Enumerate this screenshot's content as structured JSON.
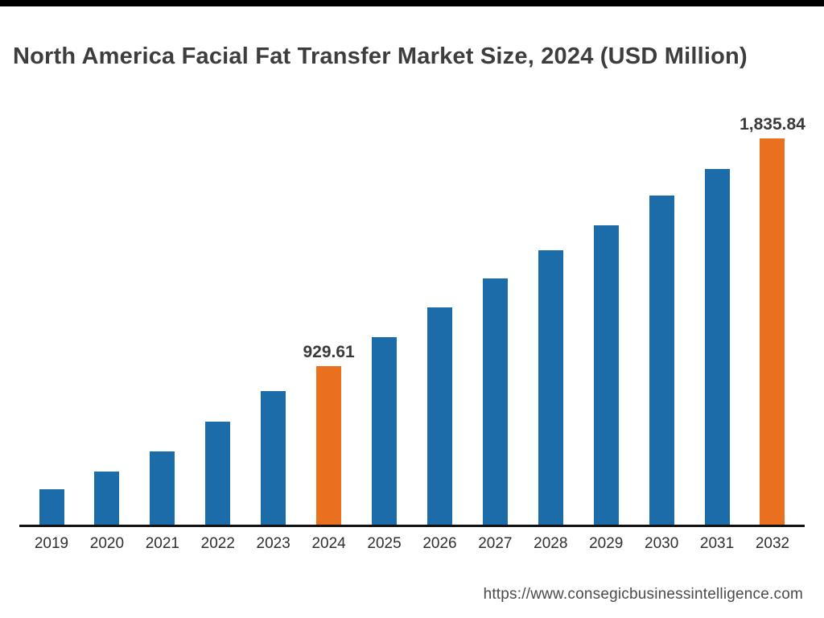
{
  "chart_data": {
    "type": "bar",
    "title": "North America Facial Fat Transfer Market Size, 2024 (USD Million)",
    "categories": [
      "2019",
      "2020",
      "2021",
      "2022",
      "2023",
      "2024",
      "2025",
      "2026",
      "2027",
      "2028",
      "2029",
      "2030",
      "2031",
      "2032"
    ],
    "values": [
      440,
      510,
      590,
      710,
      830,
      929.61,
      1045,
      1165,
      1280,
      1390,
      1490,
      1610,
      1715,
      1835.84
    ],
    "value_labels": [
      null,
      null,
      null,
      null,
      null,
      "929.61",
      null,
      null,
      null,
      null,
      null,
      null,
      null,
      "1,835.84"
    ],
    "highlight_indices": [
      5,
      13
    ],
    "bar_color": "#1b6ca8",
    "highlight_color": "#e8701e",
    "ylim": [
      300,
      1900
    ],
    "xlabel": "",
    "ylabel": "",
    "grid": false,
    "legend": false
  },
  "footer": {
    "url": "https://www.consegicbusinessintelligence.com"
  }
}
